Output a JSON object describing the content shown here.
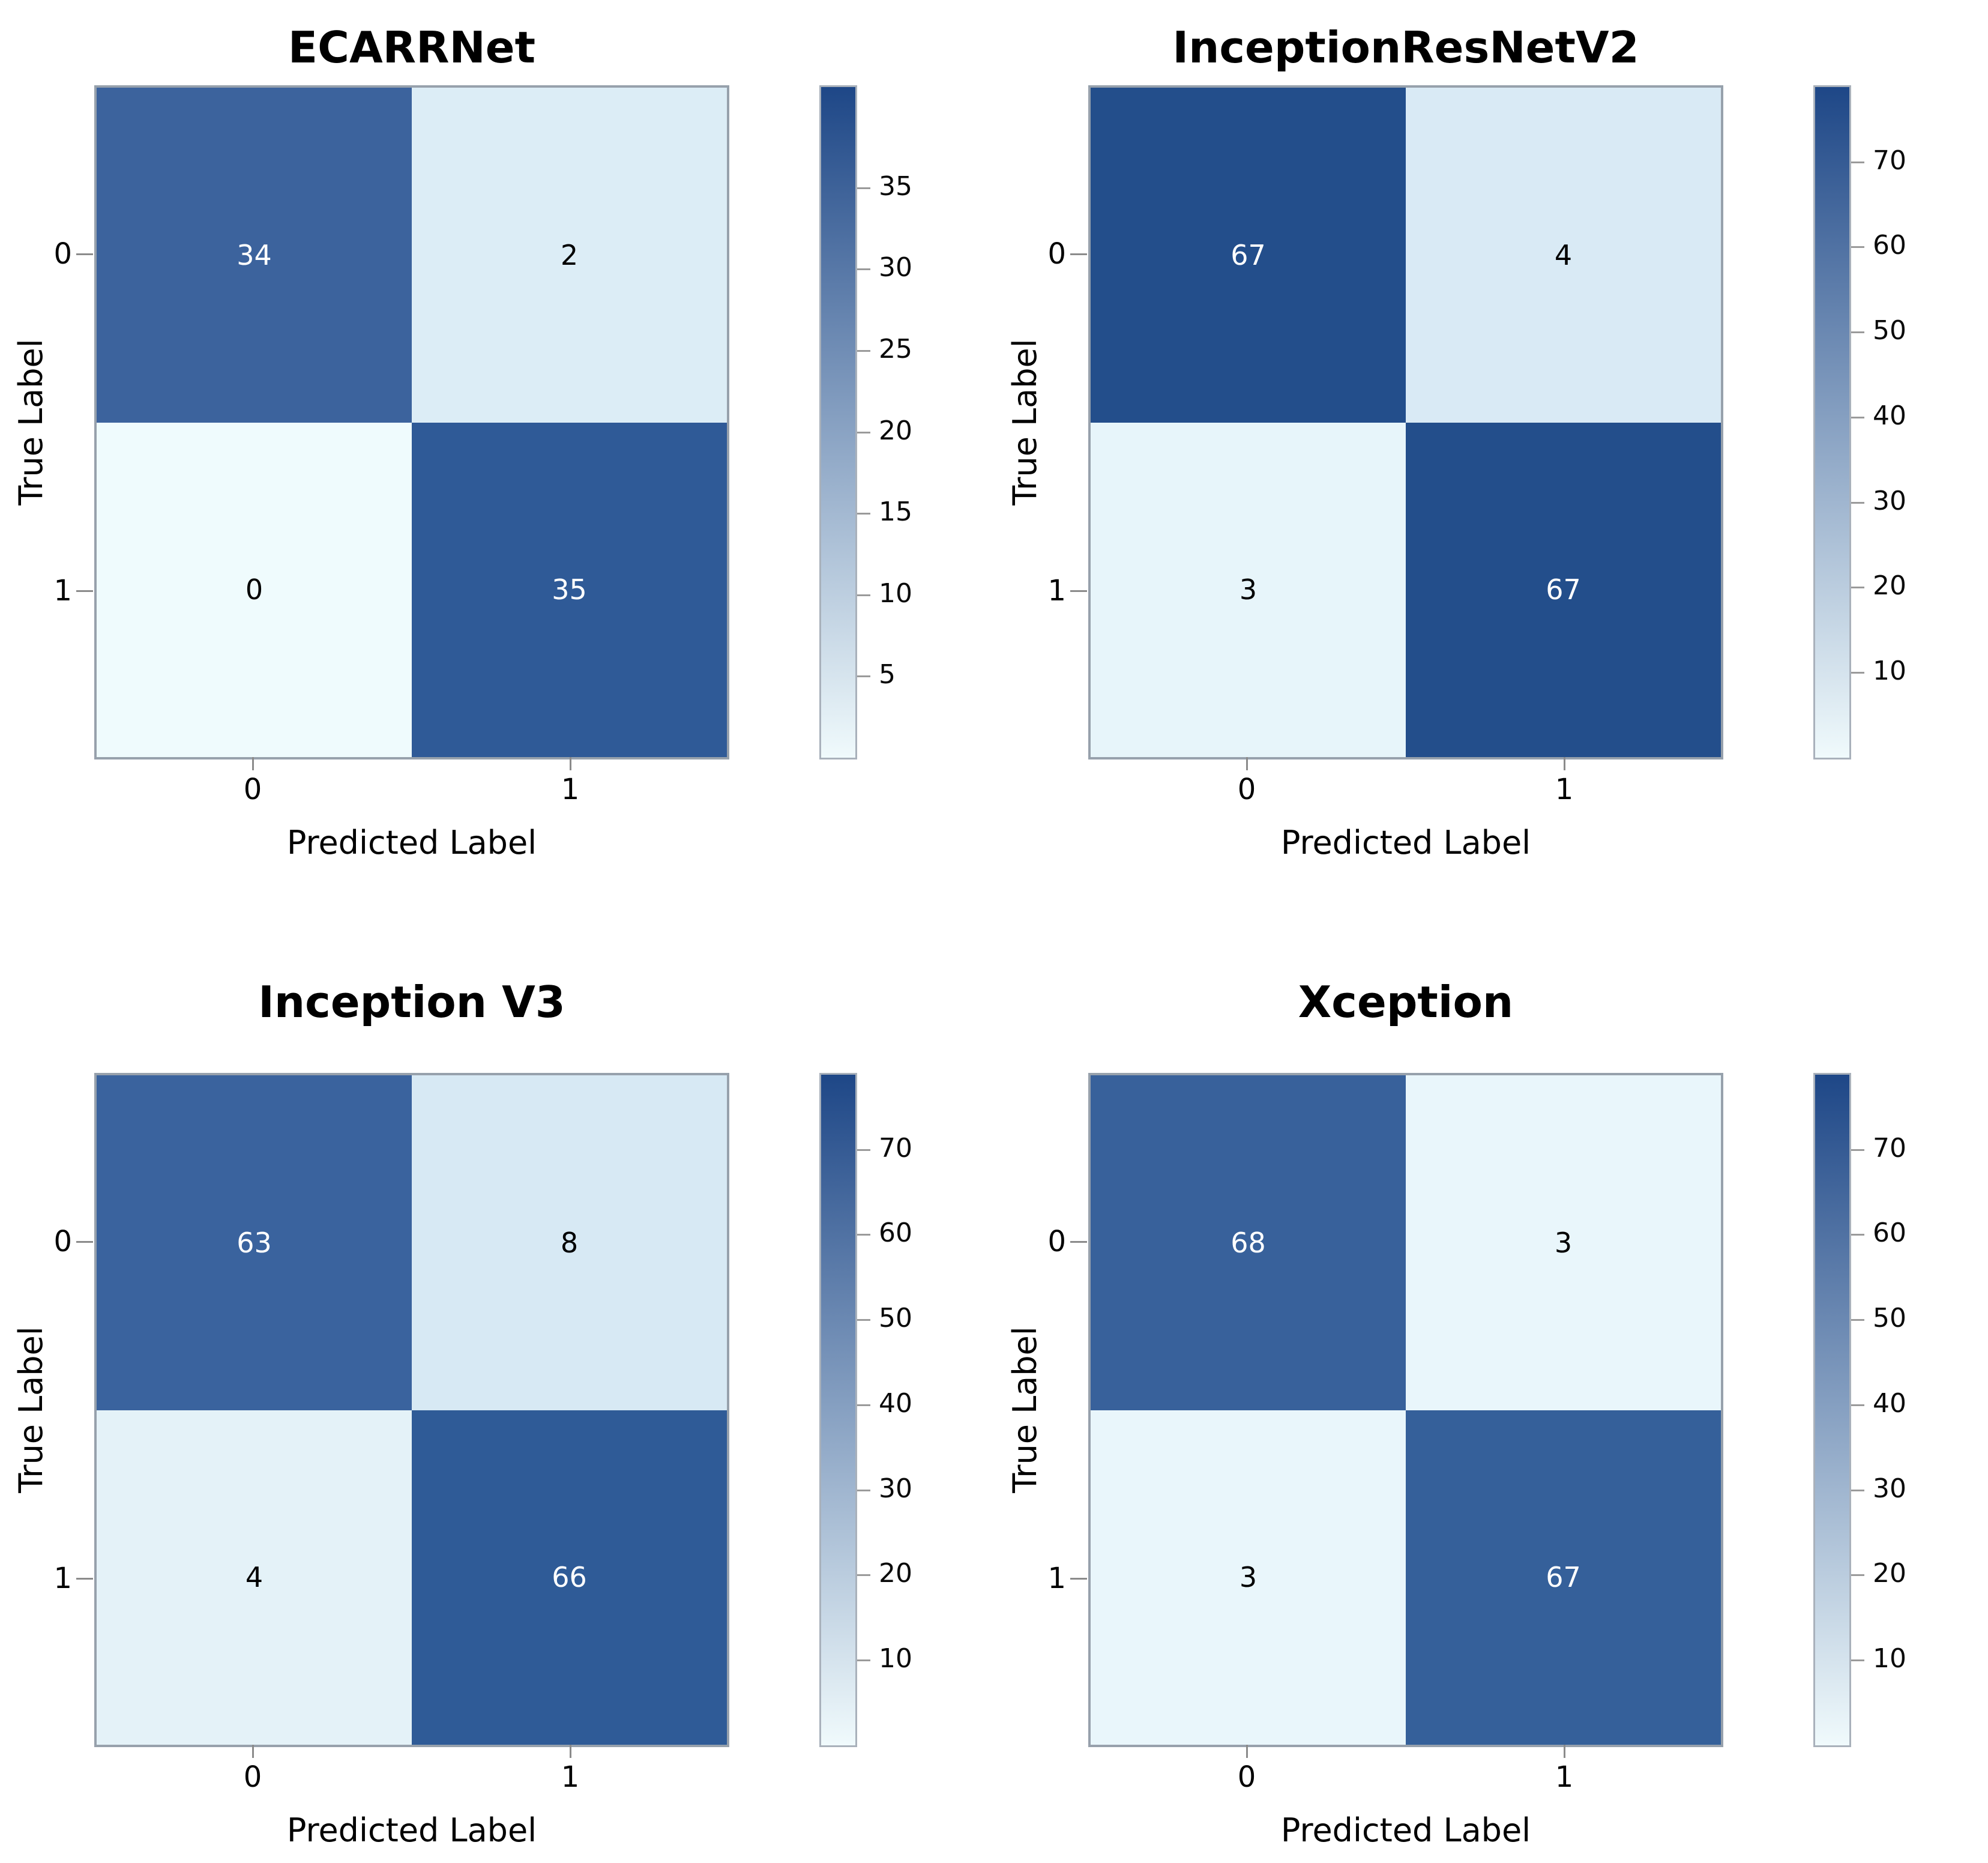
{
  "figure": {
    "background": "#ffffff",
    "heatmap_border_color": "#97a1ac",
    "colorbar_border_color": "#a9b1bb",
    "tick_mark_color": "#8b8b8b",
    "text_color": "#000000"
  },
  "chart_data": [
    {
      "type": "heatmap",
      "title": "ECARRNet",
      "xlabel": "Predicted Label",
      "ylabel": "True Label",
      "x_tick_labels": [
        "0",
        "1"
      ],
      "y_tick_labels": [
        "0",
        "1"
      ],
      "matrix": [
        [
          34,
          2
        ],
        [
          0,
          35
        ]
      ],
      "cell_colors": [
        [
          "#3C639D",
          "#DCEDF6"
        ],
        [
          "#EFFBFD",
          "#2F5A97"
        ]
      ],
      "cell_text_colors": [
        [
          "#FFFFFF",
          "#000000"
        ],
        [
          "#000000",
          "#FFFFFF"
        ]
      ],
      "colorbar": {
        "ticks": [
          35,
          30,
          25,
          20,
          15,
          10,
          5
        ],
        "range": [
          0,
          41.3
        ],
        "gradient": [
          "#1E4787",
          "#8BA4C4",
          "#F0FAFC"
        ],
        "position": "right"
      }
    },
    {
      "type": "heatmap",
      "title": "InceptionResNetV2",
      "xlabel": "Predicted Label",
      "ylabel": "True Label",
      "x_tick_labels": [
        "0",
        "1"
      ],
      "y_tick_labels": [
        "0",
        "1"
      ],
      "matrix": [
        [
          67,
          4
        ],
        [
          3,
          67
        ]
      ],
      "cell_colors": [
        [
          "#234E8B",
          "#D9EAF5"
        ],
        [
          "#E7F5FA",
          "#234E8B"
        ]
      ],
      "cell_text_colors": [
        [
          "#FFFFFF",
          "#000000"
        ],
        [
          "#000000",
          "#FFFFFF"
        ]
      ],
      "colorbar": {
        "ticks": [
          70,
          60,
          50,
          40,
          30,
          20,
          10
        ],
        "range": [
          0,
          79
        ],
        "gradient": [
          "#1E4787",
          "#8BA4C4",
          "#F0FAFC"
        ],
        "position": "right"
      }
    },
    {
      "type": "heatmap",
      "title": "Inception V3",
      "xlabel": "Predicted Label",
      "ylabel": "True Label",
      "x_tick_labels": [
        "0",
        "1"
      ],
      "y_tick_labels": [
        "0",
        "1"
      ],
      "matrix": [
        [
          63,
          8
        ],
        [
          4,
          66
        ]
      ],
      "cell_colors": [
        [
          "#3A639E",
          "#D7E9F4"
        ],
        [
          "#E4F2F8",
          "#2F5B97"
        ]
      ],
      "cell_text_colors": [
        [
          "#FFFFFF",
          "#000000"
        ],
        [
          "#000000",
          "#FFFFFF"
        ]
      ],
      "colorbar": {
        "ticks": [
          70,
          60,
          50,
          40,
          30,
          20,
          10
        ],
        "range": [
          0,
          79
        ],
        "gradient": [
          "#1E4787",
          "#8BA4C4",
          "#F0FAFC"
        ],
        "position": "right"
      }
    },
    {
      "type": "heatmap",
      "title": "Xception",
      "xlabel": "Predicted Label",
      "ylabel": "True Label",
      "x_tick_labels": [
        "0",
        "1"
      ],
      "y_tick_labels": [
        "0",
        "1"
      ],
      "matrix": [
        [
          68,
          3
        ],
        [
          3,
          67
        ]
      ],
      "cell_colors": [
        [
          "#38619B",
          "#E9F6FB"
        ],
        [
          "#E9F6FB",
          "#35609A"
        ]
      ],
      "cell_text_colors": [
        [
          "#FFFFFF",
          "#000000"
        ],
        [
          "#000000",
          "#FFFFFF"
        ]
      ],
      "colorbar": {
        "ticks": [
          70,
          60,
          50,
          40,
          30,
          20,
          10
        ],
        "range": [
          0,
          79
        ],
        "gradient": [
          "#1E4787",
          "#8BA4C4",
          "#F0FAFC"
        ],
        "position": "right"
      }
    }
  ]
}
